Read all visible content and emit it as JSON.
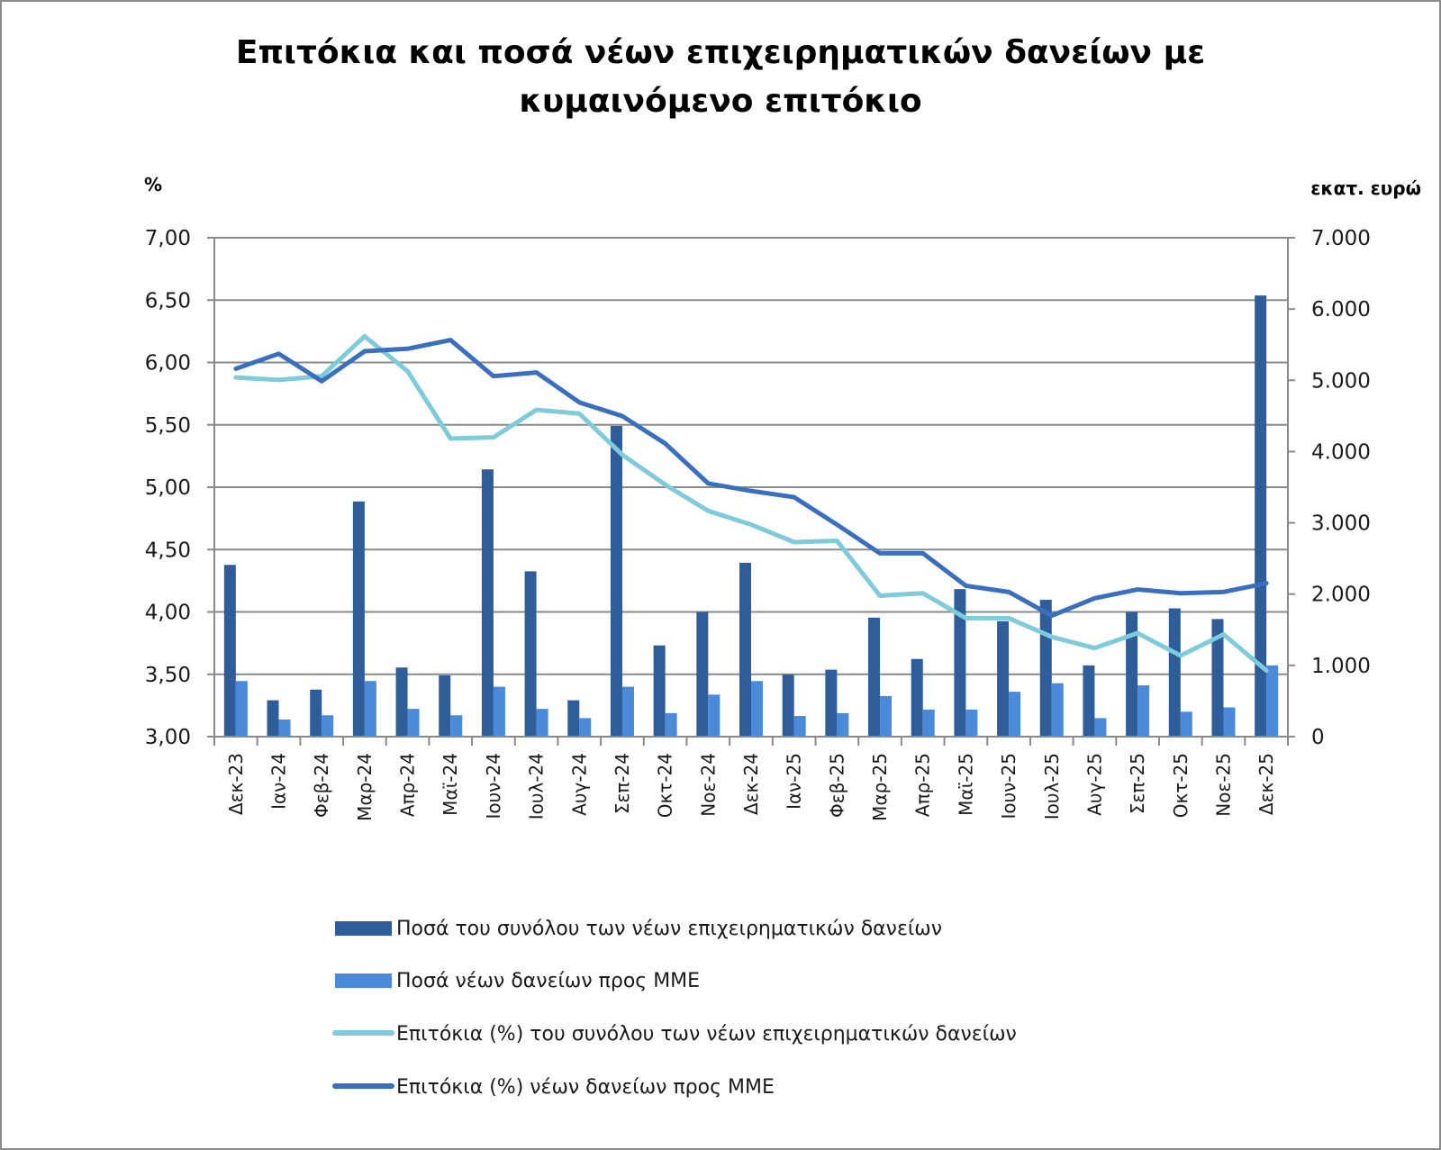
{
  "chart_data": {
    "type": "bar+line",
    "title": "Επιτόκια και ποσά νέων επιχειρηματικών δανείων με κυμαινόμενο επιτόκιο",
    "title_lines": [
      "Επιτόκια και ποσά νέων επιχειρηματικών δανείων με",
      "κυμαινόμενο επιτόκιο"
    ],
    "left_axis": {
      "unit_label": "%",
      "ylim": [
        3.0,
        7.0
      ],
      "ticks": [
        3.0,
        3.5,
        4.0,
        4.5,
        5.0,
        5.5,
        6.0,
        6.5,
        7.0
      ],
      "tick_labels": [
        "3,00",
        "3,50",
        "4,00",
        "4,50",
        "5,00",
        "5,50",
        "6,00",
        "6,50",
        "7,00"
      ],
      "grid": true
    },
    "right_axis": {
      "unit_label": "εκατ. ευρώ",
      "ylim": [
        0,
        7000
      ],
      "ticks": [
        0,
        1000,
        2000,
        3000,
        4000,
        5000,
        6000,
        7000
      ],
      "tick_labels": [
        "0",
        "1.000",
        "2.000",
        "3.000",
        "4.000",
        "5.000",
        "6.000",
        "7.000"
      ]
    },
    "categories": [
      "Δεκ-23",
      "Ιαν-24",
      "Φεβ-24",
      "Μαρ-24",
      "Απρ-24",
      "Μαϊ-24",
      "Ιουν-24",
      "Ιουλ-24",
      "Αυγ-24",
      "Σεπ-24",
      "Οκτ-24",
      "Νοε-24",
      "Δεκ-24",
      "Ιαν-25",
      "Φεβ-25",
      "Μαρ-25",
      "Απρ-25",
      "Μαϊ-25",
      "Ιουν-25",
      "Ιουλ-25",
      "Αυγ-25",
      "Σεπ-25",
      "Οκτ-25",
      "Νοε-25",
      "Δεκ-25"
    ],
    "series": [
      {
        "name": "Ποσά του συνόλου των νέων επιχειρηματικών δανείων",
        "kind": "bar",
        "axis": "right",
        "color": "#2f5d9a",
        "values": [
          2410,
          510,
          660,
          3300,
          970,
          860,
          3750,
          2320,
          510,
          4360,
          1280,
          1750,
          2440,
          870,
          940,
          1670,
          1090,
          2070,
          1620,
          1920,
          1000,
          1750,
          1800,
          1650,
          6190
        ]
      },
      {
        "name": "Ποσά νέων δανείων προς ΜΜΕ",
        "kind": "bar",
        "axis": "right",
        "color": "#4a8ad8",
        "values": [
          780,
          240,
          300,
          780,
          390,
          300,
          700,
          390,
          260,
          700,
          330,
          590,
          780,
          290,
          330,
          570,
          380,
          380,
          630,
          750,
          260,
          720,
          350,
          410,
          1000
        ]
      },
      {
        "name": "Επιτόκια (%) του συνόλου των νέων επιχειρηματικών δανείων",
        "kind": "line",
        "axis": "left",
        "color": "#7ecbdc",
        "values": [
          5.88,
          5.86,
          5.89,
          6.21,
          5.93,
          5.39,
          5.4,
          5.62,
          5.59,
          5.26,
          5.02,
          4.81,
          4.7,
          4.56,
          4.57,
          4.13,
          4.15,
          3.95,
          3.95,
          3.8,
          3.71,
          3.83,
          3.65,
          3.82,
          3.53
        ]
      },
      {
        "name": "Επιτόκια (%) νέων δανείων προς ΜΜΕ",
        "kind": "line",
        "axis": "left",
        "color": "#3a6fc0",
        "values": [
          5.95,
          6.07,
          5.85,
          6.09,
          6.11,
          6.18,
          5.89,
          5.92,
          5.68,
          5.57,
          5.35,
          5.03,
          4.97,
          4.92,
          4.7,
          4.47,
          4.47,
          4.21,
          4.16,
          3.97,
          4.11,
          4.18,
          4.15,
          4.16,
          4.23
        ]
      }
    ],
    "legend_position": "bottom"
  }
}
